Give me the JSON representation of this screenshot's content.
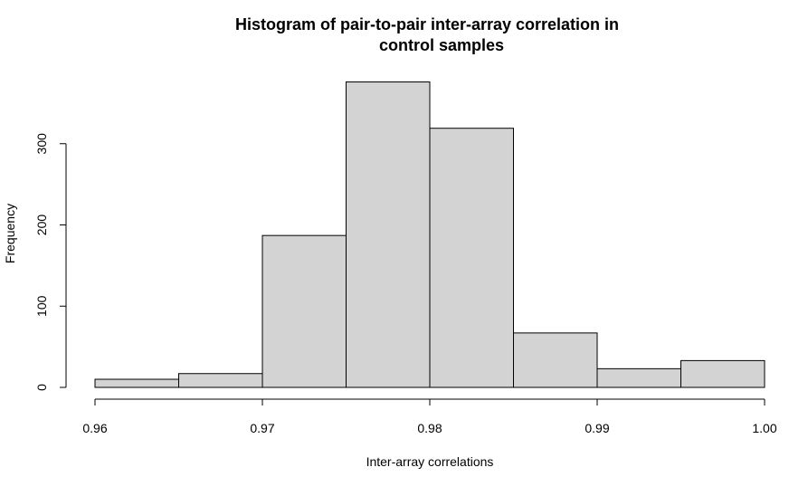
{
  "chart_data": {
    "type": "bar",
    "title_lines": [
      "Histogram of pair-to-pair inter-array correlation in",
      "control samples"
    ],
    "xlabel": "Inter-array correlations",
    "ylabel": "Frequency",
    "bins": [
      {
        "start": 0.96,
        "end": 0.965,
        "count": 10
      },
      {
        "start": 0.965,
        "end": 0.97,
        "count": 17
      },
      {
        "start": 0.97,
        "end": 0.975,
        "count": 187
      },
      {
        "start": 0.975,
        "end": 0.98,
        "count": 376
      },
      {
        "start": 0.98,
        "end": 0.985,
        "count": 319
      },
      {
        "start": 0.985,
        "end": 0.99,
        "count": 67
      },
      {
        "start": 0.99,
        "end": 0.995,
        "count": 23
      },
      {
        "start": 0.995,
        "end": 1.0,
        "count": 33
      }
    ],
    "xlim": [
      0.96,
      1.0
    ],
    "ylim": [
      0,
      400
    ],
    "x_ticks": [
      0.96,
      0.97,
      0.98,
      0.99,
      1.0
    ],
    "x_tick_labels": [
      "0.96",
      "0.97",
      "0.98",
      "0.99",
      "1.00"
    ],
    "y_ticks": [
      0,
      100,
      200,
      300
    ],
    "y_tick_labels": [
      "0",
      "100",
      "200",
      "300"
    ],
    "bar_fill": "#d3d3d3",
    "grid": false,
    "legend": "none"
  }
}
